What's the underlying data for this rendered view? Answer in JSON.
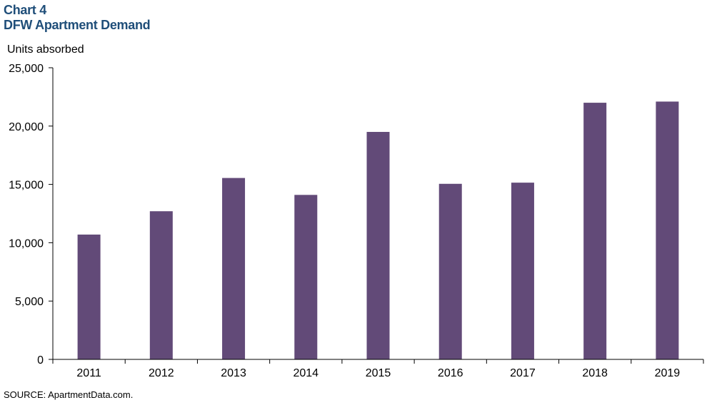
{
  "header": {
    "chart_number": "Chart 4",
    "title": "DFW Apartment Demand"
  },
  "units_label": "Units absorbed",
  "source": "SOURCE:  ApartmentData.com.",
  "colors": {
    "bar": "#624a78",
    "title": "#1f4e79",
    "axis": "#000000"
  },
  "chart_data": {
    "type": "bar",
    "title": "DFW Apartment Demand",
    "ylabel": "Units absorbed",
    "xlabel": "",
    "categories": [
      "2011",
      "2012",
      "2013",
      "2014",
      "2015",
      "2016",
      "2017",
      "2018",
      "2019"
    ],
    "values": [
      10700,
      12700,
      15550,
      14100,
      19500,
      15050,
      15150,
      22000,
      22100
    ],
    "ylim": [
      0,
      25000
    ],
    "yticks": [
      0,
      5000,
      10000,
      15000,
      20000,
      25000
    ],
    "ytick_labels": [
      "0",
      "5,000",
      "10,000",
      "15,000",
      "20,000",
      "25,000"
    ],
    "grid": false,
    "legend": "none"
  }
}
